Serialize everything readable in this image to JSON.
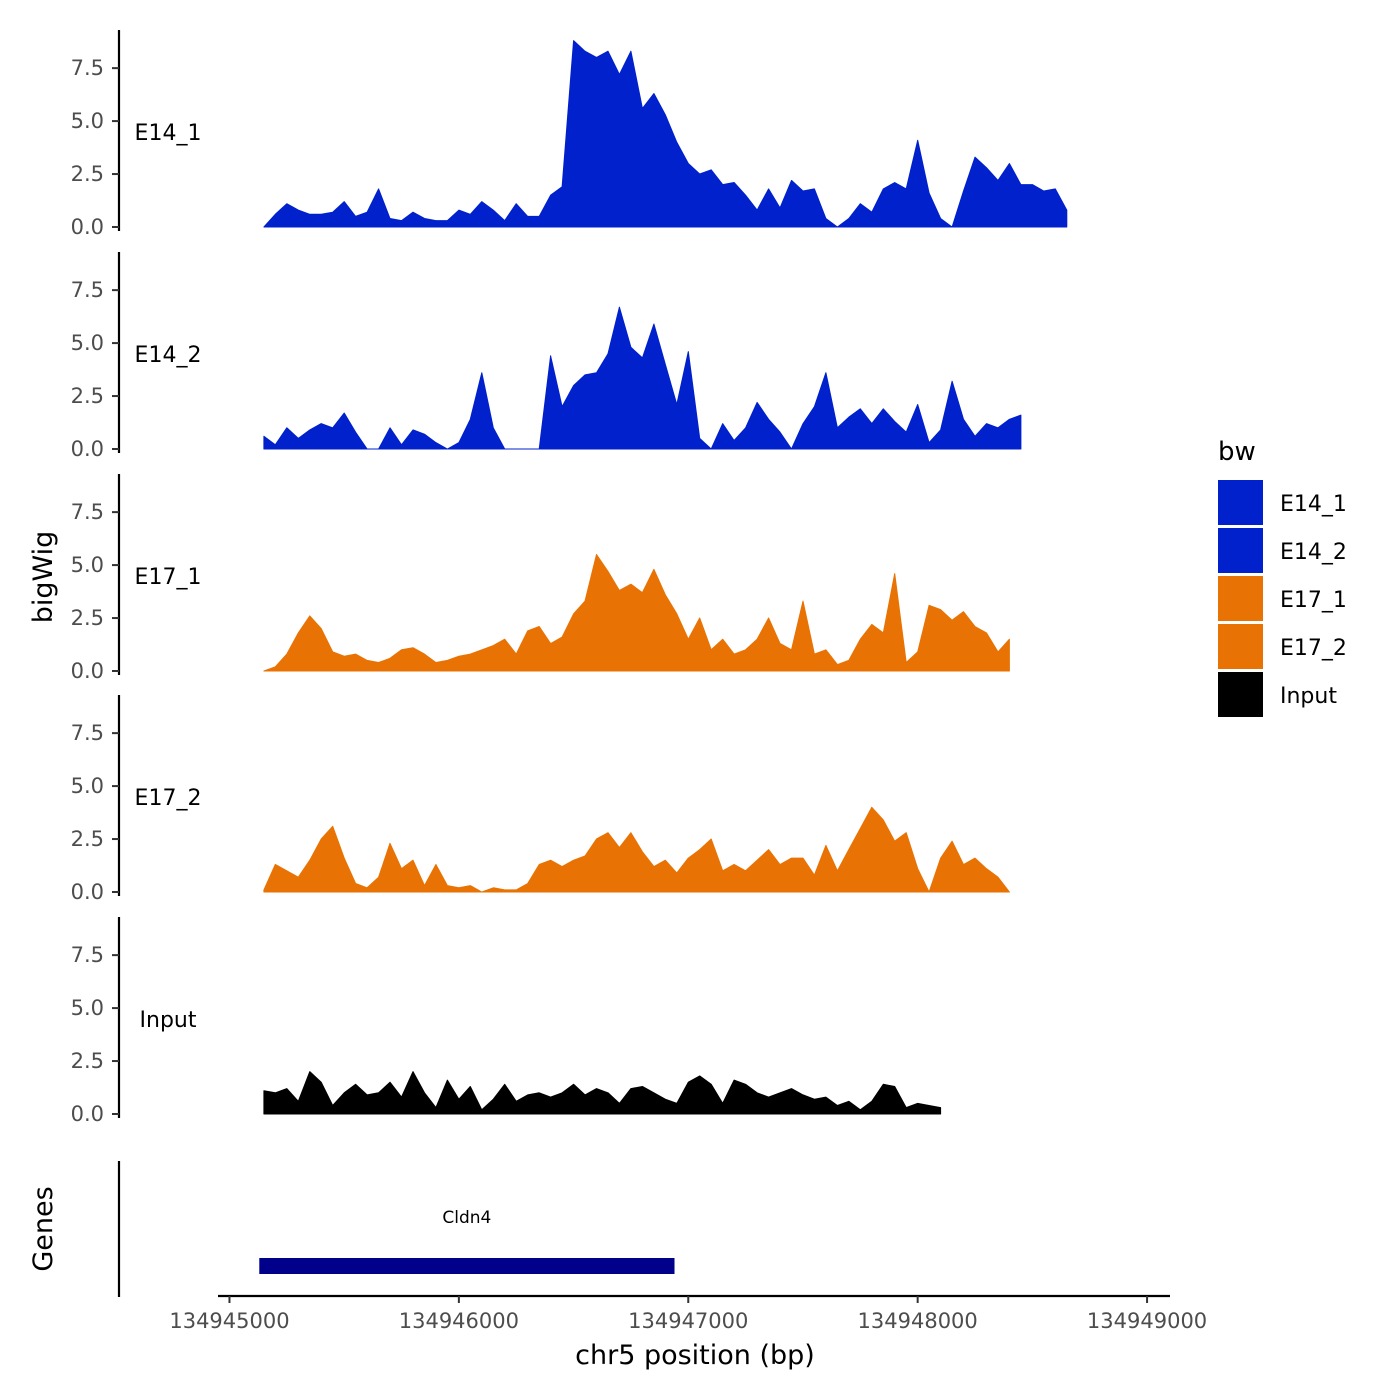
{
  "chart_data": {
    "type": "area",
    "xlabel": "chr5 position (bp)",
    "ylabel": "bigWig",
    "genes_label": "Genes",
    "xlim": [
      134944950,
      134949100
    ],
    "x_ticks": [
      134945000,
      134946000,
      134947000,
      134948000,
      134949000
    ],
    "x_tick_labels": [
      "134945000",
      "134946000",
      "134947000",
      "134948000",
      "134949000"
    ],
    "ylim": [
      0,
      9.3
    ],
    "y_ticks": [
      0.0,
      2.5,
      5.0,
      7.5
    ],
    "y_tick_labels": [
      "0.0",
      "2.5",
      "5.0",
      "7.5"
    ],
    "legend": {
      "title": "bw",
      "entries": [
        {
          "label": "E14_1",
          "color": "#0021CC"
        },
        {
          "label": "E14_2",
          "color": "#0021CC"
        },
        {
          "label": "E17_1",
          "color": "#E87304"
        },
        {
          "label": "E17_2",
          "color": "#E87304"
        },
        {
          "label": "Input",
          "color": "#000000"
        }
      ]
    },
    "series": [
      {
        "name": "E14_1",
        "color": "#0021CC",
        "x_start": 134945150,
        "x_step": 50,
        "values": [
          0,
          0.6,
          1.1,
          0.8,
          0.6,
          0.6,
          0.7,
          1.2,
          0.5,
          0.7,
          1.8,
          0.4,
          0.3,
          0.7,
          0.4,
          0.3,
          0.3,
          0.8,
          0.6,
          1.2,
          0.8,
          0.3,
          1.1,
          0.5,
          0.5,
          1.5,
          1.9,
          8.8,
          8.3,
          8.0,
          8.3,
          7.2,
          8.3,
          5.6,
          6.3,
          5.3,
          4.0,
          3.0,
          2.5,
          2.7,
          2.0,
          2.1,
          1.5,
          0.8,
          1.8,
          0.9,
          2.2,
          1.7,
          1.8,
          0.4,
          0,
          0.4,
          1.1,
          0.7,
          1.8,
          2.1,
          1.8,
          4.1,
          1.6,
          0.4,
          0,
          1.7,
          3.3,
          2.8,
          2.2,
          3.0,
          2.0,
          2.0,
          1.7,
          1.8,
          0.8
        ]
      },
      {
        "name": "E14_2",
        "color": "#0021CC",
        "x_start": 134945150,
        "x_step": 50,
        "values": [
          0.6,
          0.2,
          1.0,
          0.5,
          0.9,
          1.2,
          1.0,
          1.7,
          0.8,
          0,
          0,
          1.0,
          0.2,
          0.9,
          0.7,
          0.3,
          0,
          0.3,
          1.4,
          3.6,
          1.0,
          0,
          0,
          0,
          0,
          4.4,
          2.0,
          3.0,
          3.5,
          3.6,
          4.5,
          6.7,
          4.8,
          4.3,
          5.9,
          4.0,
          2.1,
          4.6,
          0.5,
          0,
          1.2,
          0.4,
          1.0,
          2.2,
          1.4,
          0.8,
          0,
          1.2,
          2.0,
          3.6,
          1.0,
          1.5,
          1.9,
          1.2,
          1.9,
          1.3,
          0.8,
          2.1,
          0.3,
          0.9,
          3.2,
          1.4,
          0.6,
          1.2,
          1.0,
          1.4,
          1.6
        ]
      },
      {
        "name": "E17_1",
        "color": "#E87304",
        "x_start": 134945150,
        "x_step": 50,
        "values": [
          0,
          0.2,
          0.8,
          1.8,
          2.6,
          2.0,
          0.9,
          0.7,
          0.8,
          0.5,
          0.4,
          0.6,
          1.0,
          1.1,
          0.8,
          0.4,
          0.5,
          0.7,
          0.8,
          1.0,
          1.2,
          1.5,
          0.8,
          1.9,
          2.1,
          1.3,
          1.6,
          2.7,
          3.3,
          5.5,
          4.7,
          3.8,
          4.1,
          3.7,
          4.8,
          3.6,
          2.7,
          1.5,
          2.5,
          1.0,
          1.5,
          0.8,
          1.0,
          1.5,
          2.5,
          1.3,
          1.0,
          3.3,
          0.8,
          1.0,
          0.3,
          0.5,
          1.5,
          2.2,
          1.8,
          4.6,
          0.4,
          0.9,
          3.1,
          2.9,
          2.4,
          2.8,
          2.1,
          1.8,
          0.9,
          1.5
        ]
      },
      {
        "name": "E17_2",
        "color": "#E87304",
        "x_start": 134945150,
        "x_step": 50,
        "values": [
          0.1,
          1.3,
          1.0,
          0.7,
          1.5,
          2.5,
          3.1,
          1.6,
          0.4,
          0.2,
          0.7,
          2.3,
          1.1,
          1.5,
          0.3,
          1.3,
          0.3,
          0.2,
          0.3,
          0,
          0.2,
          0.1,
          0.1,
          0.4,
          1.3,
          1.5,
          1.2,
          1.5,
          1.7,
          2.5,
          2.8,
          2.1,
          2.8,
          1.9,
          1.2,
          1.5,
          0.9,
          1.6,
          2.0,
          2.5,
          1.0,
          1.3,
          1.0,
          1.5,
          2.0,
          1.3,
          1.6,
          1.6,
          0.8,
          2.2,
          1.0,
          2.0,
          3.0,
          4.0,
          3.4,
          2.4,
          2.8,
          1.1,
          0,
          1.6,
          2.4,
          1.3,
          1.6,
          1.1,
          0.7,
          0
        ]
      },
      {
        "name": "Input",
        "color": "#000000",
        "x_start": 134945150,
        "x_step": 50,
        "values": [
          1.1,
          1.0,
          1.2,
          0.6,
          2.0,
          1.5,
          0.4,
          1.0,
          1.4,
          0.9,
          1.0,
          1.5,
          0.8,
          2.0,
          1.0,
          0.3,
          1.6,
          0.7,
          1.3,
          0.2,
          0.7,
          1.4,
          0.6,
          0.9,
          1.0,
          0.8,
          1.0,
          1.4,
          0.9,
          1.2,
          1.0,
          0.5,
          1.2,
          1.3,
          1.0,
          0.7,
          0.5,
          1.5,
          1.8,
          1.4,
          0.5,
          1.6,
          1.4,
          1.0,
          0.8,
          1.0,
          1.2,
          0.9,
          0.7,
          0.8,
          0.4,
          0.6,
          0.2,
          0.6,
          1.4,
          1.3,
          0.3,
          0.5,
          0.4,
          0.3
        ]
      }
    ],
    "genes": [
      {
        "name": "Cldn4",
        "start": 134945130,
        "end": 134946940,
        "color": "#00008B"
      }
    ]
  }
}
